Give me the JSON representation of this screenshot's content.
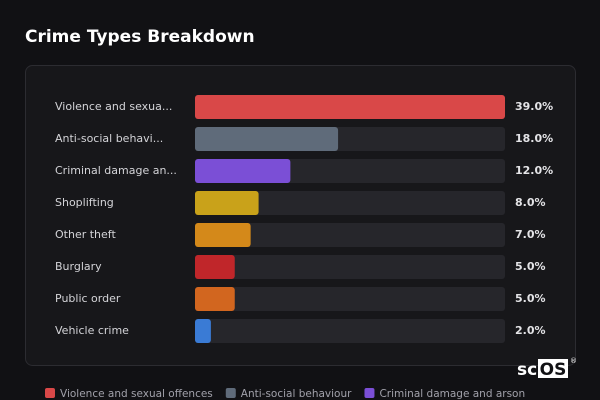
{
  "chart_data": {
    "type": "bar",
    "orientation": "horizontal",
    "title": "Crime Types Breakdown",
    "categories": [
      "Violence and sexua...",
      "Anti-social behavi...",
      "Criminal damage an...",
      "Shoplifting",
      "Other theft",
      "Burglary",
      "Public order",
      "Vehicle crime"
    ],
    "values": [
      39,
      18,
      12,
      8,
      7,
      5,
      5,
      2
    ],
    "value_labels": [
      "39.0%",
      "18.0%",
      "12.0%",
      "8.0%",
      "7.0%",
      "5.0%",
      "5.0%",
      "2.0%"
    ],
    "colors": [
      "#d94848",
      "#5f6b7a",
      "#7b4fd6",
      "#c9a21a",
      "#d4891a",
      "#c0262a",
      "#d2661f",
      "#3a7bd5"
    ],
    "legend": [
      {
        "name": "Violence and sexual offences",
        "color": "#d94848"
      },
      {
        "name": "Anti-social behaviour",
        "color": "#5f6b7a"
      },
      {
        "name": "Criminal damage and arson",
        "color": "#7b4fd6"
      }
    ]
  },
  "logo": {
    "left": "sc",
    "boxed": "OS",
    "mark": "®"
  }
}
